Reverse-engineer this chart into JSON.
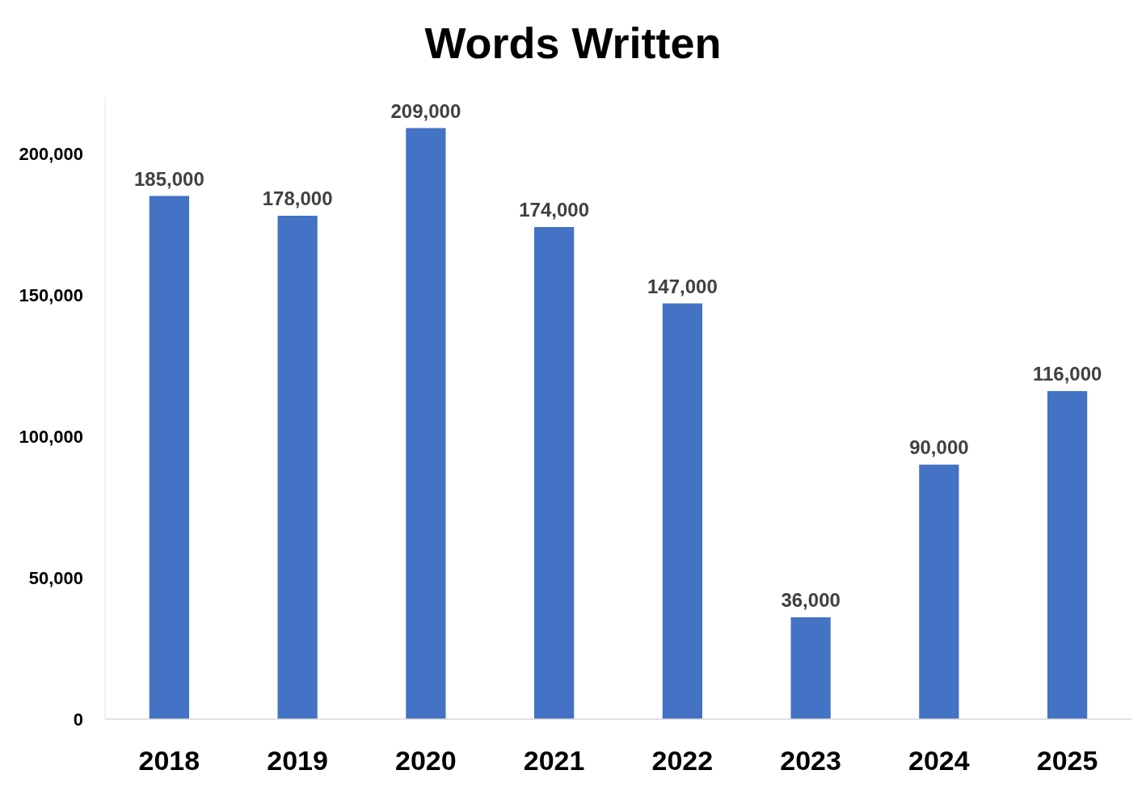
{
  "chart_data": {
    "type": "bar",
    "title": "Words Written",
    "categories": [
      "2018",
      "2019",
      "2020",
      "2021",
      "2022",
      "2023",
      "2024",
      "2025"
    ],
    "values": [
      185000,
      178000,
      209000,
      174000,
      147000,
      36000,
      90000,
      116000
    ],
    "color": "#4472c4",
    "ylim": [
      0,
      220000
    ],
    "yticks": [
      {
        "value": 0,
        "label": "0"
      },
      {
        "value": 50000,
        "label": "50,000"
      },
      {
        "value": 100000,
        "label": "100,000"
      },
      {
        "value": 150000,
        "label": "150,000"
      },
      {
        "value": 200000,
        "label": "200,000"
      }
    ],
    "value_labels": [
      "185,000",
      "178,000",
      "209,000",
      "174,000",
      "147,000",
      "36,000",
      "90,000",
      "116,000"
    ]
  }
}
